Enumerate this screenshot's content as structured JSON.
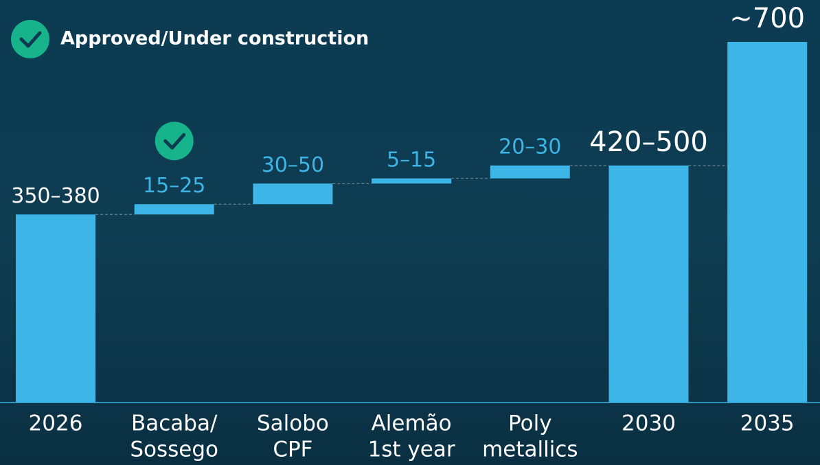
{
  "chart_data": {
    "type": "waterfall",
    "legend": {
      "label": "Approved/Under construction"
    },
    "categories": [
      [
        "2026"
      ],
      [
        "Bacaba/",
        "Sossego"
      ],
      [
        "Salobo",
        "CPF"
      ],
      [
        "Alemão",
        "1st year"
      ],
      [
        "Poly",
        "metallics"
      ],
      [
        "2030"
      ],
      [
        "2035"
      ]
    ],
    "values": [
      365,
      20,
      40,
      10,
      25,
      460,
      700
    ],
    "value_labels": [
      "350–380",
      "15–25",
      "30–50",
      "5–15",
      "20–30",
      "420–500",
      "~700"
    ],
    "is_total": [
      true,
      false,
      false,
      false,
      false,
      true,
      true
    ],
    "approved": [
      1
    ],
    "color": "#3db5e6"
  }
}
